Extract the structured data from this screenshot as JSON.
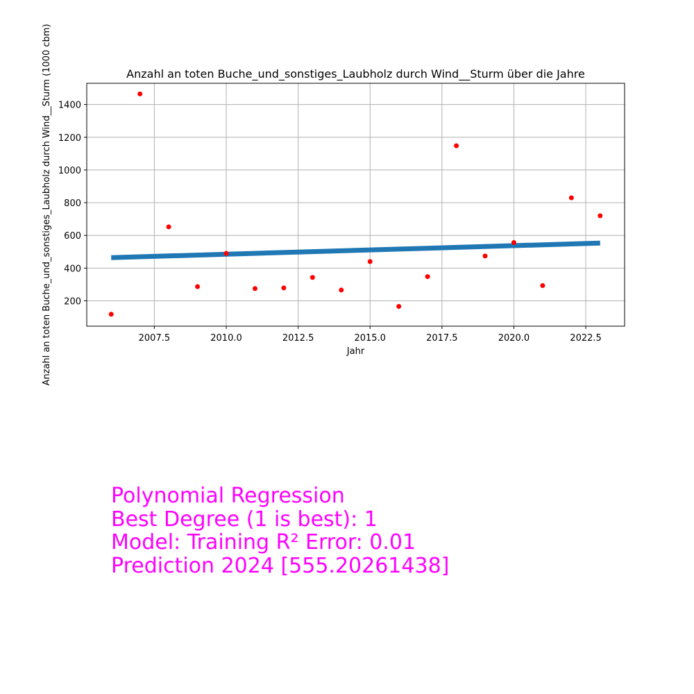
{
  "chart_data": {
    "type": "scatter",
    "title": "Anzahl an toten Buche_und_sonstiges_Laubholz durch Wind__Sturm über die Jahre",
    "xlabel": "Jahr",
    "ylabel": "Anzahl an toten Buche_und_sonstiges_Laubholz durch Wind__Sturm (1000 cbm)",
    "xlim": [
      2005.15,
      2023.85
    ],
    "ylim": [
      45,
      1530
    ],
    "grid": true,
    "x_ticks": [
      2007.5,
      2010.0,
      2012.5,
      2015.0,
      2017.5,
      2020.0,
      2022.5
    ],
    "x_tick_labels": [
      "2007.5",
      "2010.0",
      "2012.5",
      "2015.0",
      "2017.5",
      "2020.0",
      "2022.5"
    ],
    "y_ticks": [
      200,
      400,
      600,
      800,
      1000,
      1200,
      1400
    ],
    "y_tick_labels": [
      "200",
      "400",
      "600",
      "800",
      "1000",
      "1200",
      "1400"
    ],
    "series": [
      {
        "kind": "scatter",
        "color": "#ff0000",
        "x": [
          2006,
          2007,
          2008,
          2009,
          2010,
          2011,
          2012,
          2013,
          2014,
          2015,
          2016,
          2017,
          2018,
          2019,
          2020,
          2021,
          2022,
          2023
        ],
        "y": [
          118,
          1465,
          652,
          287,
          490,
          275,
          279,
          343,
          266,
          440,
          166,
          348,
          1148,
          474,
          556,
          293,
          830,
          720
        ]
      },
      {
        "kind": "line",
        "color": "#1f77b4",
        "x": [
          2006,
          2023
        ],
        "y": [
          464,
          553
        ]
      }
    ]
  },
  "annotation": {
    "line1": "Polynomial Regression",
    "line2": "Best Degree (1 is best): 1",
    "line3": "Model: Training R² Error: 0.01",
    "line4": "Prediction 2024 [555.20261438]",
    "color": "#ff00ff"
  }
}
